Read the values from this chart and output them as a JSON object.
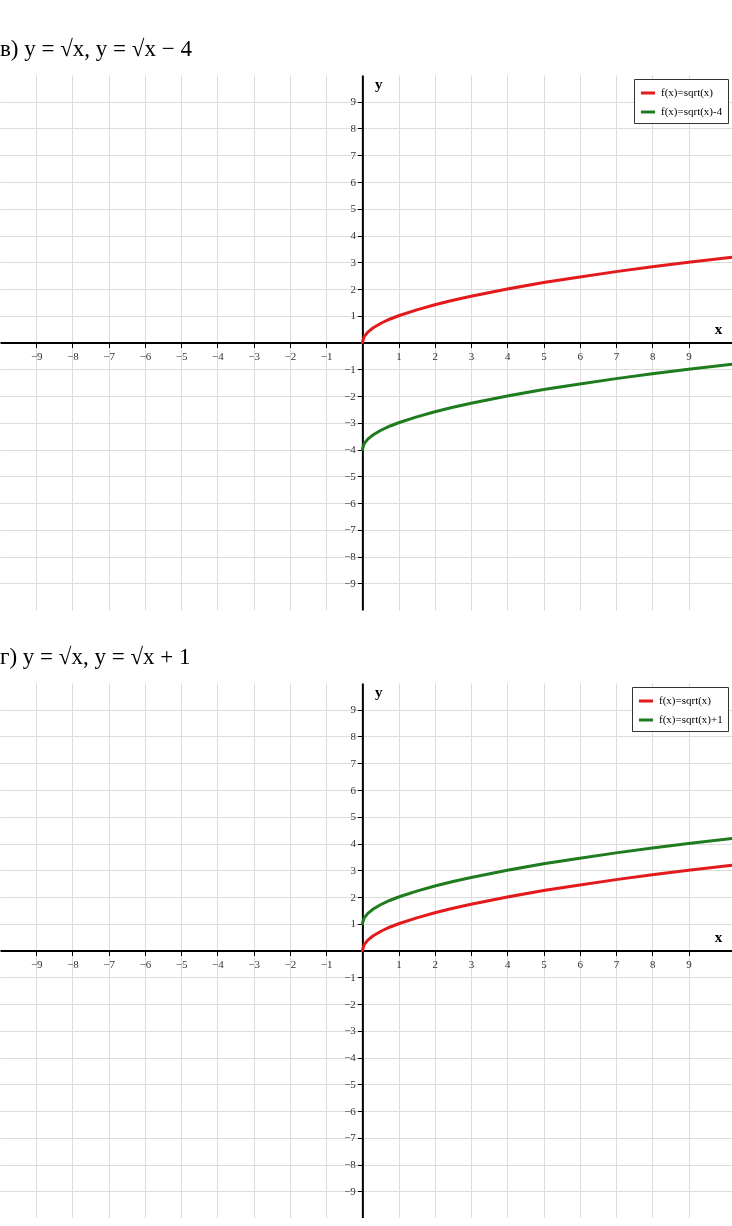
{
  "chart_data": [
    {
      "type": "line",
      "title": "в) y = √x,   y = √x − 4",
      "xlabel": "x",
      "ylabel": "y",
      "xlim": [
        -10,
        10.2
      ],
      "ylim": [
        -10,
        10
      ],
      "xticks": [
        -9,
        -8,
        -7,
        -6,
        -5,
        -4,
        -3,
        -2,
        -1,
        1,
        2,
        3,
        4,
        5,
        6,
        7,
        8,
        9
      ],
      "yticks": [
        -9,
        -8,
        -7,
        -6,
        -5,
        -4,
        -3,
        -2,
        -1,
        1,
        2,
        3,
        4,
        5,
        6,
        7,
        8,
        9
      ],
      "grid": true,
      "legend": "top right",
      "series": [
        {
          "name": "f(x)=sqrt(x)",
          "color": "#e31a1c",
          "x": [
            0,
            0.05,
            0.15,
            0.3,
            0.5,
            0.75,
            1,
            1.5,
            2,
            2.5,
            3,
            4,
            5,
            6,
            7,
            8,
            9,
            10.2
          ],
          "values": [
            0,
            0.22,
            0.39,
            0.55,
            0.71,
            0.87,
            1,
            1.22,
            1.41,
            1.58,
            1.73,
            2,
            2.24,
            2.45,
            2.65,
            2.83,
            3,
            3.19
          ]
        },
        {
          "name": "f(x)=sqrt(x)-4",
          "color": "#1e7b1e",
          "x": [
            0,
            0.05,
            0.15,
            0.3,
            0.5,
            0.75,
            1,
            1.5,
            2,
            2.5,
            3,
            4,
            5,
            6,
            7,
            8,
            9,
            10.2
          ],
          "values": [
            -4,
            -3.78,
            -3.61,
            -3.45,
            -3.29,
            -3.13,
            -3,
            -2.78,
            -2.59,
            -2.42,
            -2.27,
            -2,
            -1.76,
            -1.55,
            -1.35,
            -1.17,
            -1,
            -0.81
          ]
        }
      ]
    },
    {
      "type": "line",
      "title": "г) y = √x,   y = √x + 1",
      "xlabel": "x",
      "ylabel": "y",
      "xlim": [
        -10,
        10.2
      ],
      "ylim": [
        -10,
        10
      ],
      "xticks": [
        -9,
        -8,
        -7,
        -6,
        -5,
        -4,
        -3,
        -2,
        -1,
        1,
        2,
        3,
        4,
        5,
        6,
        7,
        8,
        9
      ],
      "yticks": [
        -9,
        -8,
        -7,
        -6,
        -5,
        -4,
        -3,
        -2,
        -1,
        1,
        2,
        3,
        4,
        5,
        6,
        7,
        8,
        9
      ],
      "grid": true,
      "legend": "top right",
      "series": [
        {
          "name": "f(x)=sqrt(x)",
          "color": "#e31a1c",
          "x": [
            0,
            0.05,
            0.15,
            0.3,
            0.5,
            0.75,
            1,
            1.5,
            2,
            2.5,
            3,
            4,
            5,
            6,
            7,
            8,
            9,
            10.2
          ],
          "values": [
            0,
            0.22,
            0.39,
            0.55,
            0.71,
            0.87,
            1,
            1.22,
            1.41,
            1.58,
            1.73,
            2,
            2.24,
            2.45,
            2.65,
            2.83,
            3,
            3.19
          ]
        },
        {
          "name": "f(x)=sqrt(x)+1",
          "color": "#1e7b1e",
          "x": [
            0,
            0.05,
            0.15,
            0.3,
            0.5,
            0.75,
            1,
            1.5,
            2,
            2.5,
            3,
            4,
            5,
            6,
            7,
            8,
            9,
            10.2
          ],
          "values": [
            1,
            1.22,
            1.39,
            1.55,
            1.71,
            1.87,
            2,
            2.22,
            2.41,
            2.58,
            2.73,
            3,
            3.24,
            3.45,
            3.65,
            3.83,
            4,
            4.19
          ]
        }
      ]
    }
  ]
}
